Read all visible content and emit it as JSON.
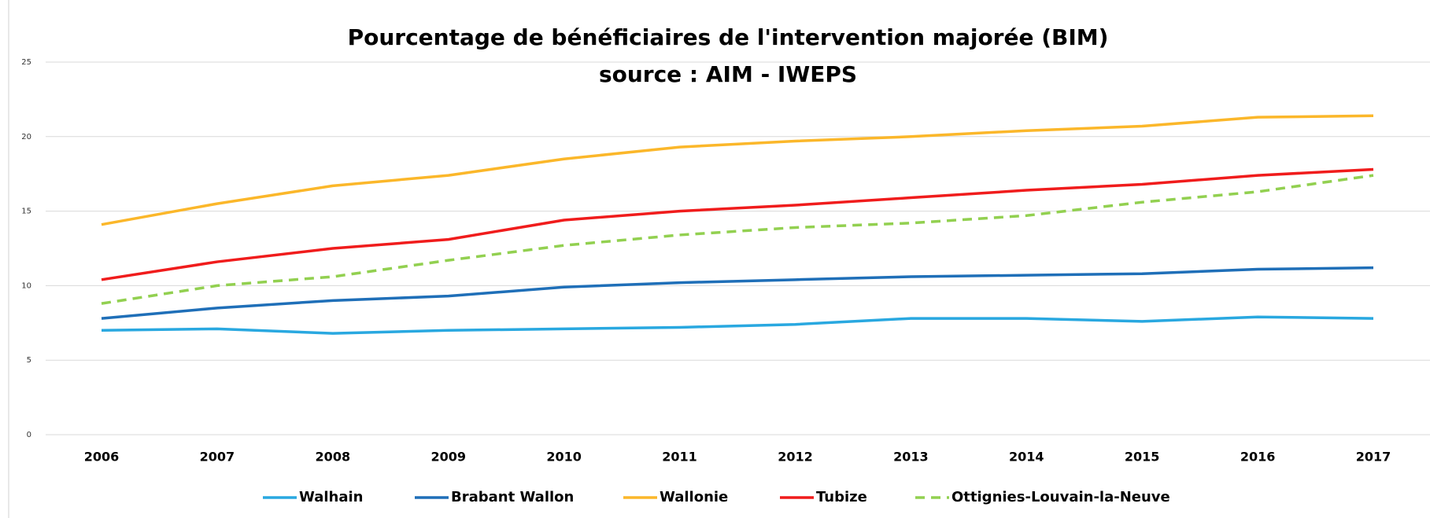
{
  "chart_data": {
    "type": "line",
    "title": "Pourcentage de bénéficiaires de l'intervention majorée (BIM)",
    "subtitle": "source : AIM - IWEPS",
    "categories": [
      "2006",
      "2007",
      "2008",
      "2009",
      "2010",
      "2011",
      "2012",
      "2013",
      "2014",
      "2015",
      "2016",
      "2017"
    ],
    "series": [
      {
        "name": "Walhain",
        "color": "#29a8e0",
        "values": [
          7.0,
          7.1,
          6.8,
          7.0,
          7.1,
          7.2,
          7.4,
          7.8,
          7.8,
          7.6,
          7.9,
          7.8
        ]
      },
      {
        "name": "Brabant Wallon",
        "color": "#1f6fb8",
        "values": [
          7.8,
          8.5,
          9.0,
          9.3,
          9.9,
          10.2,
          10.4,
          10.6,
          10.7,
          10.8,
          11.1,
          11.2
        ]
      },
      {
        "name": "Wallonie",
        "color": "#fbb72a",
        "values": [
          14.1,
          15.5,
          16.7,
          17.4,
          18.5,
          19.3,
          19.7,
          20.0,
          20.4,
          20.7,
          21.3,
          21.4
        ]
      },
      {
        "name": "Tubize",
        "color": "#f01c1c",
        "values": [
          10.4,
          11.6,
          12.5,
          13.1,
          14.4,
          15.0,
          15.4,
          15.9,
          16.4,
          16.8,
          17.4,
          17.8
        ]
      },
      {
        "name": "Ottignies-Louvain-la-Neuve",
        "color": "#92d050",
        "dashed": true,
        "values": [
          8.8,
          10.0,
          10.6,
          11.7,
          12.7,
          13.4,
          13.9,
          14.2,
          14.7,
          15.6,
          16.3,
          17.4
        ]
      }
    ],
    "ylim": [
      0,
      25
    ],
    "yticks": [
      0,
      5,
      10,
      15,
      20,
      25
    ],
    "grid": true,
    "legend": "bottom"
  }
}
